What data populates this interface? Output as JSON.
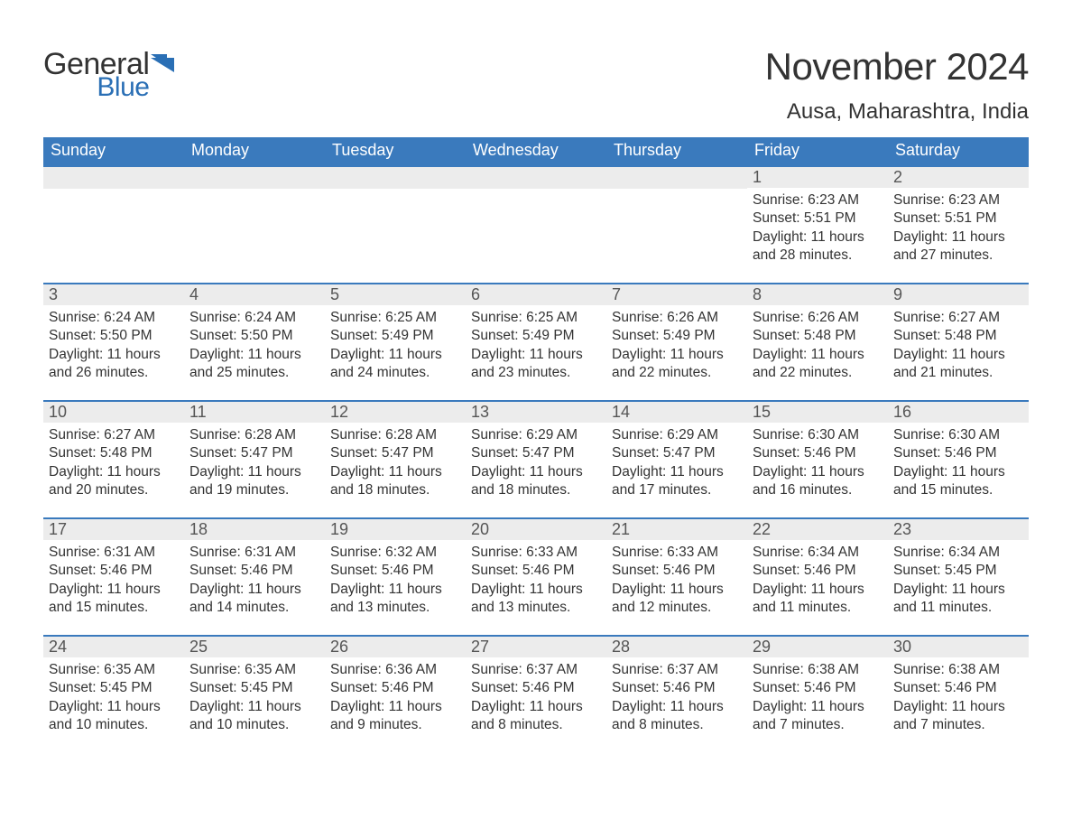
{
  "logo": {
    "part1": "General",
    "part2": "Blue",
    "mark_color": "#2a6fb5"
  },
  "title": "November 2024",
  "location": "Ausa, Maharashtra, India",
  "colors": {
    "header_bg": "#3a7abd",
    "header_text": "#ffffff",
    "daynum_bg": "#ececec",
    "daynum_text": "#555555",
    "body_text": "#333333",
    "rule": "#3a7abd",
    "page_bg": "#ffffff"
  },
  "typography": {
    "title_fontsize": 42,
    "location_fontsize": 24,
    "weekday_fontsize": 18,
    "daynum_fontsize": 18,
    "body_fontsize": 15.5,
    "font_family": "Segoe UI / Arial"
  },
  "weekdays": [
    "Sunday",
    "Monday",
    "Tuesday",
    "Wednesday",
    "Thursday",
    "Friday",
    "Saturday"
  ],
  "weeks": [
    [
      {
        "empty": true
      },
      {
        "empty": true
      },
      {
        "empty": true
      },
      {
        "empty": true
      },
      {
        "empty": true
      },
      {
        "day": "1",
        "sunrise": "Sunrise: 6:23 AM",
        "sunset": "Sunset: 5:51 PM",
        "daylight": "Daylight: 11 hours and 28 minutes."
      },
      {
        "day": "2",
        "sunrise": "Sunrise: 6:23 AM",
        "sunset": "Sunset: 5:51 PM",
        "daylight": "Daylight: 11 hours and 27 minutes."
      }
    ],
    [
      {
        "day": "3",
        "sunrise": "Sunrise: 6:24 AM",
        "sunset": "Sunset: 5:50 PM",
        "daylight": "Daylight: 11 hours and 26 minutes."
      },
      {
        "day": "4",
        "sunrise": "Sunrise: 6:24 AM",
        "sunset": "Sunset: 5:50 PM",
        "daylight": "Daylight: 11 hours and 25 minutes."
      },
      {
        "day": "5",
        "sunrise": "Sunrise: 6:25 AM",
        "sunset": "Sunset: 5:49 PM",
        "daylight": "Daylight: 11 hours and 24 minutes."
      },
      {
        "day": "6",
        "sunrise": "Sunrise: 6:25 AM",
        "sunset": "Sunset: 5:49 PM",
        "daylight": "Daylight: 11 hours and 23 minutes."
      },
      {
        "day": "7",
        "sunrise": "Sunrise: 6:26 AM",
        "sunset": "Sunset: 5:49 PM",
        "daylight": "Daylight: 11 hours and 22 minutes."
      },
      {
        "day": "8",
        "sunrise": "Sunrise: 6:26 AM",
        "sunset": "Sunset: 5:48 PM",
        "daylight": "Daylight: 11 hours and 22 minutes."
      },
      {
        "day": "9",
        "sunrise": "Sunrise: 6:27 AM",
        "sunset": "Sunset: 5:48 PM",
        "daylight": "Daylight: 11 hours and 21 minutes."
      }
    ],
    [
      {
        "day": "10",
        "sunrise": "Sunrise: 6:27 AM",
        "sunset": "Sunset: 5:48 PM",
        "daylight": "Daylight: 11 hours and 20 minutes."
      },
      {
        "day": "11",
        "sunrise": "Sunrise: 6:28 AM",
        "sunset": "Sunset: 5:47 PM",
        "daylight": "Daylight: 11 hours and 19 minutes."
      },
      {
        "day": "12",
        "sunrise": "Sunrise: 6:28 AM",
        "sunset": "Sunset: 5:47 PM",
        "daylight": "Daylight: 11 hours and 18 minutes."
      },
      {
        "day": "13",
        "sunrise": "Sunrise: 6:29 AM",
        "sunset": "Sunset: 5:47 PM",
        "daylight": "Daylight: 11 hours and 18 minutes."
      },
      {
        "day": "14",
        "sunrise": "Sunrise: 6:29 AM",
        "sunset": "Sunset: 5:47 PM",
        "daylight": "Daylight: 11 hours and 17 minutes."
      },
      {
        "day": "15",
        "sunrise": "Sunrise: 6:30 AM",
        "sunset": "Sunset: 5:46 PM",
        "daylight": "Daylight: 11 hours and 16 minutes."
      },
      {
        "day": "16",
        "sunrise": "Sunrise: 6:30 AM",
        "sunset": "Sunset: 5:46 PM",
        "daylight": "Daylight: 11 hours and 15 minutes."
      }
    ],
    [
      {
        "day": "17",
        "sunrise": "Sunrise: 6:31 AM",
        "sunset": "Sunset: 5:46 PM",
        "daylight": "Daylight: 11 hours and 15 minutes."
      },
      {
        "day": "18",
        "sunrise": "Sunrise: 6:31 AM",
        "sunset": "Sunset: 5:46 PM",
        "daylight": "Daylight: 11 hours and 14 minutes."
      },
      {
        "day": "19",
        "sunrise": "Sunrise: 6:32 AM",
        "sunset": "Sunset: 5:46 PM",
        "daylight": "Daylight: 11 hours and 13 minutes."
      },
      {
        "day": "20",
        "sunrise": "Sunrise: 6:33 AM",
        "sunset": "Sunset: 5:46 PM",
        "daylight": "Daylight: 11 hours and 13 minutes."
      },
      {
        "day": "21",
        "sunrise": "Sunrise: 6:33 AM",
        "sunset": "Sunset: 5:46 PM",
        "daylight": "Daylight: 11 hours and 12 minutes."
      },
      {
        "day": "22",
        "sunrise": "Sunrise: 6:34 AM",
        "sunset": "Sunset: 5:46 PM",
        "daylight": "Daylight: 11 hours and 11 minutes."
      },
      {
        "day": "23",
        "sunrise": "Sunrise: 6:34 AM",
        "sunset": "Sunset: 5:45 PM",
        "daylight": "Daylight: 11 hours and 11 minutes."
      }
    ],
    [
      {
        "day": "24",
        "sunrise": "Sunrise: 6:35 AM",
        "sunset": "Sunset: 5:45 PM",
        "daylight": "Daylight: 11 hours and 10 minutes."
      },
      {
        "day": "25",
        "sunrise": "Sunrise: 6:35 AM",
        "sunset": "Sunset: 5:45 PM",
        "daylight": "Daylight: 11 hours and 10 minutes."
      },
      {
        "day": "26",
        "sunrise": "Sunrise: 6:36 AM",
        "sunset": "Sunset: 5:46 PM",
        "daylight": "Daylight: 11 hours and 9 minutes."
      },
      {
        "day": "27",
        "sunrise": "Sunrise: 6:37 AM",
        "sunset": "Sunset: 5:46 PM",
        "daylight": "Daylight: 11 hours and 8 minutes."
      },
      {
        "day": "28",
        "sunrise": "Sunrise: 6:37 AM",
        "sunset": "Sunset: 5:46 PM",
        "daylight": "Daylight: 11 hours and 8 minutes."
      },
      {
        "day": "29",
        "sunrise": "Sunrise: 6:38 AM",
        "sunset": "Sunset: 5:46 PM",
        "daylight": "Daylight: 11 hours and 7 minutes."
      },
      {
        "day": "30",
        "sunrise": "Sunrise: 6:38 AM",
        "sunset": "Sunset: 5:46 PM",
        "daylight": "Daylight: 11 hours and 7 minutes."
      }
    ]
  ]
}
